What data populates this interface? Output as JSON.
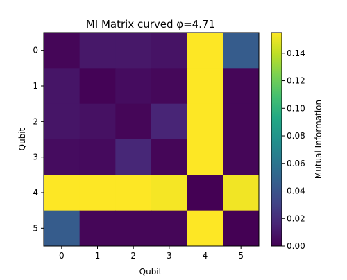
{
  "chart_data": {
    "type": "heatmap",
    "title": "MI Matrix curved φ=4.71",
    "xlabel": "Qubit",
    "ylabel": "Qubit",
    "x_ticks": [
      "0",
      "1",
      "2",
      "3",
      "4",
      "5"
    ],
    "y_ticks": [
      "0",
      "1",
      "2",
      "3",
      "4",
      "5"
    ],
    "colormap": "viridis",
    "colorbar": {
      "label": "Mutual Information",
      "range": [
        0,
        0.155
      ],
      "ticks": [
        "0.00",
        "0.02",
        "0.04",
        "0.06",
        "0.08",
        "0.10",
        "0.12",
        "0.14"
      ],
      "tick_values": [
        0,
        0.02,
        0.04,
        0.06,
        0.08,
        0.1,
        0.12,
        0.14
      ]
    },
    "matrix": [
      [
        0.002,
        0.01,
        0.01,
        0.008,
        0.155,
        0.045
      ],
      [
        0.009,
        0.001,
        0.005,
        0.003,
        0.155,
        0.002
      ],
      [
        0.009,
        0.007,
        0.002,
        0.016,
        0.155,
        0.002
      ],
      [
        0.005,
        0.004,
        0.017,
        0.002,
        0.155,
        0.002
      ],
      [
        0.155,
        0.155,
        0.155,
        0.153,
        0.0,
        0.152
      ],
      [
        0.045,
        0.002,
        0.002,
        0.002,
        0.155,
        0.0
      ]
    ]
  }
}
